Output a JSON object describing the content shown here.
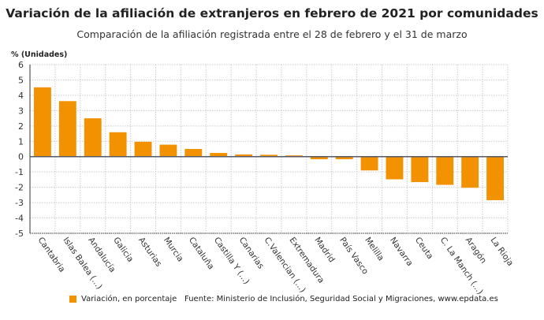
{
  "chart_data": {
    "type": "bar",
    "title": "Variación de la afiliación de extranjeros en febrero de 2021 por comunidades",
    "subtitle": "Comparación de la afiliación registrada entre el 28 de febrero y el 31 de marzo",
    "ylabel": "% (Unidades)",
    "ylim": [
      -5,
      6
    ],
    "yticks": [
      6,
      5,
      4,
      3,
      2,
      1,
      0,
      -1,
      -2,
      -3,
      -4,
      -5
    ],
    "grid": true,
    "categories": [
      "Cantabria",
      "Islas Balea (...)",
      "Andalucía",
      "Galicia",
      "Asturias",
      "Murcia",
      "Cataluña",
      "Castilla Y (...)",
      "Canarias",
      "C.Valencian (...)",
      "Extremadura",
      "Madrid",
      "País Vasco",
      "Melilla",
      "Navarra",
      "Ceuta",
      "C. La Manch (...)",
      "Aragón",
      "La Rioja"
    ],
    "series": [
      {
        "name": "Variación, en porcentaje",
        "values": [
          4.52,
          3.62,
          2.5,
          1.59,
          0.97,
          0.78,
          0.5,
          0.24,
          0.14,
          0.12,
          0.08,
          -0.17,
          -0.17,
          -0.9,
          -1.48,
          -1.66,
          -1.84,
          -2.03,
          -2.84
        ]
      }
    ],
    "legend_position": "bottom-left",
    "source": "Fuente: Ministerio de Inclusión, Seguridad Social y Migraciones, www.epdata.es",
    "colors": {
      "bar": "#f39200",
      "zero_line": "#555a66",
      "grid": "#cccccc"
    }
  }
}
